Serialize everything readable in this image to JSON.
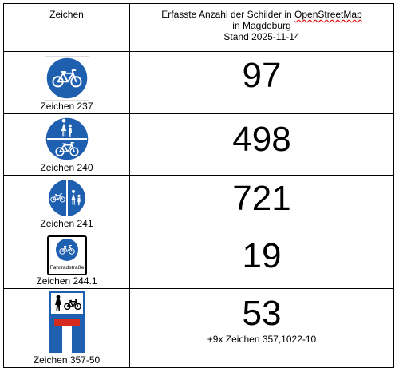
{
  "table": {
    "header_sign": "Zeichen",
    "header_count_line1_pre": "Erfasste Anzahl der Schilder in ",
    "header_count_line1_osm": "OpenStreetMap",
    "header_count_line2": "in Magdeburg",
    "header_count_line3": "Stand 2025-11-14",
    "rows": [
      {
        "sign": "Zeichen 237",
        "count": "97",
        "icon": "bicycle-path-sign-icon"
      },
      {
        "sign": "Zeichen 240",
        "count": "498",
        "icon": "shared-foot-cycle-path-sign-icon"
      },
      {
        "sign": "Zeichen 241",
        "count": "721",
        "icon": "segregated-foot-cycle-path-sign-icon"
      },
      {
        "sign": "Zeichen 244.1",
        "count": "19",
        "icon": "bicycle-street-sign-icon",
        "sign_text": "Fahrradstraße"
      },
      {
        "sign": "Zeichen 357-50",
        "count": "53",
        "icon": "dead-end-permeable-sign-icon",
        "extra": "+9x Zeichen 357,1022-10"
      }
    ]
  },
  "colors": {
    "sign_blue": "#1f5fb0",
    "sign_red": "#d52b1e"
  }
}
